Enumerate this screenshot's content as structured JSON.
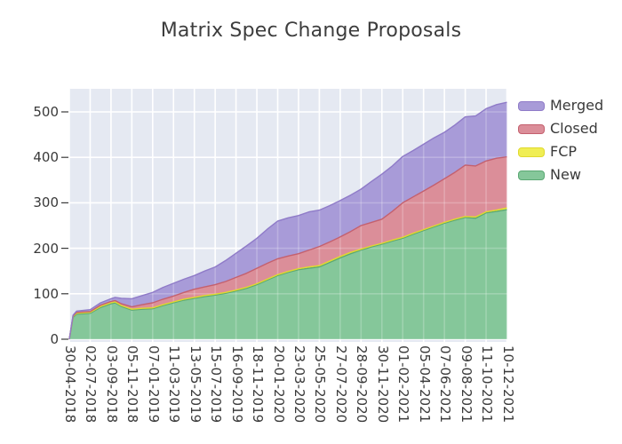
{
  "chart_data": {
    "type": "area",
    "stacked": true,
    "title": "Matrix Spec Change Proposals",
    "xlabel": "",
    "ylabel": "",
    "ylim": [
      0,
      540
    ],
    "yticks": [
      0,
      100,
      200,
      300,
      400,
      500
    ],
    "grid": true,
    "legend_position": "top-right",
    "plot_background": "#E5E9F2",
    "gridline_color": "#FFFFFF",
    "text_color": "#3A3A3A",
    "x_tick_labels": [
      "30-04-2018",
      "02-07-2018",
      "03-09-2018",
      "05-11-2018",
      "07-01-2019",
      "11-03-2019",
      "13-05-2019",
      "15-07-2019",
      "16-09-2019",
      "18-11-2019",
      "20-01-2020",
      "23-03-2020",
      "25-05-2020",
      "27-07-2020",
      "28-09-2020",
      "30-11-2020",
      "01-02-2021",
      "05-04-2021",
      "07-06-2021",
      "09-08-2021",
      "11-10-2021",
      "10-12-2021"
    ],
    "x_samples_tick_units": [
      0,
      0.18,
      0.35,
      1,
      1.5,
      2,
      2.2,
      2.5,
      3,
      3.5,
      4,
      4.5,
      5,
      5.5,
      6,
      6.5,
      7,
      7.5,
      8,
      8.5,
      9,
      9.5,
      10,
      10.5,
      11,
      11.5,
      12,
      12.5,
      13,
      13.5,
      14,
      14.5,
      15,
      15.5,
      16,
      16.5,
      17,
      17.5,
      18,
      18.5,
      19,
      19.5,
      20,
      20.5,
      21
    ],
    "series": [
      {
        "name": "New",
        "fill": "#85C79A",
        "line": "#5BA873",
        "values": [
          0,
          48,
          55,
          57,
          70,
          78,
          80,
          72,
          64,
          66,
          67,
          74,
          80,
          86,
          90,
          94,
          97,
          101,
          106,
          112,
          120,
          130,
          140,
          147,
          153,
          156,
          159,
          169,
          179,
          188,
          196,
          203,
          209,
          216,
          222,
          231,
          239,
          247,
          255,
          262,
          268,
          266,
          278,
          281,
          285
        ]
      },
      {
        "name": "FCP",
        "fill": "#F0EE54",
        "line": "#E0D92E",
        "values": [
          0,
          2,
          2,
          2,
          2,
          2,
          2,
          2,
          2,
          2,
          2,
          2,
          2,
          2,
          2,
          2,
          2,
          2,
          2,
          2,
          2,
          2,
          2,
          2,
          2,
          3,
          3,
          3,
          3,
          3,
          2,
          2,
          2,
          2,
          2,
          2,
          2,
          2,
          2,
          2,
          2,
          3,
          2,
          3,
          4
        ]
      },
      {
        "name": "Closed",
        "fill": "#DB8E99",
        "line": "#C4606E",
        "values": [
          0,
          1,
          2,
          2,
          3,
          3,
          3,
          4,
          5,
          8,
          11,
          12,
          13,
          15,
          18,
          19,
          21,
          24,
          28,
          31,
          34,
          35,
          35,
          34,
          33,
          37,
          42,
          42,
          43,
          46,
          52,
          52,
          53,
          63,
          76,
          80,
          85,
          90,
          96,
          103,
          113,
          112,
          112,
          114,
          112
        ]
      },
      {
        "name": "Merged",
        "fill": "#A89BD8",
        "line": "#8F7BC8",
        "values": [
          0,
          2,
          3,
          4,
          5,
          6,
          7,
          12,
          18,
          20,
          23,
          26,
          28,
          29,
          30,
          35,
          39,
          46,
          53,
          60,
          66,
          75,
          83,
          84,
          84,
          84,
          80,
          80,
          80,
          80,
          80,
          90,
          99,
          100,
          102,
          102,
          103,
          104,
          102,
          104,
          106,
          110,
          115,
          118,
          120
        ]
      }
    ],
    "legend_order": [
      "Merged",
      "Closed",
      "FCP",
      "New"
    ]
  }
}
